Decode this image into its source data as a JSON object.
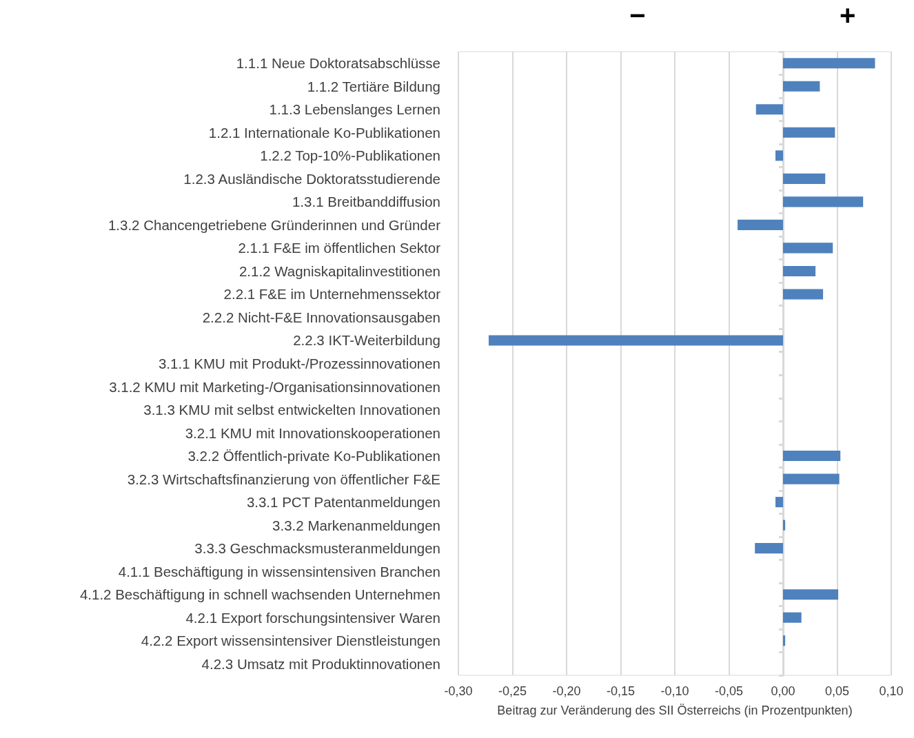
{
  "chart_data": {
    "type": "bar",
    "orientation": "horizontal",
    "xlabel": "Beitrag zur Veränderung des SII Österreichs (in Prozentpunkten)",
    "categories": [
      "1.1.1 Neue Doktoratsabschlüsse",
      "1.1.2 Tertiäre Bildung",
      "1.1.3 Lebenslanges Lernen",
      "1.2.1 Internationale Ko-Publikationen",
      "1.2.2 Top-10%-Publikationen",
      "1.2.3 Ausländische Doktoratsstudierende",
      "1.3.1 Breitbanddiffusion",
      "1.3.2 Chancengetriebene Gründerinnen und Gründer",
      "2.1.1 F&E im öffentlichen Sektor",
      "2.1.2 Wagniskapitalinvestitionen",
      "2.2.1 F&E im Unternehmenssektor",
      "2.2.2 Nicht-F&E Innovationsausgaben",
      "2.2.3 IKT-Weiterbildung",
      "3.1.1 KMU mit Produkt-/Prozessinnovationen",
      "3.1.2 KMU mit Marketing-/Organisationsinnovationen",
      "3.1.3 KMU mit selbst entwickelten Innovationen",
      "3.2.1 KMU mit Innovationskooperationen",
      "3.2.2 Öffentlich-private Ko-Publikationen",
      "3.2.3 Wirtschaftsfinanzierung von öffentlicher F&E",
      "3.3.1 PCT Patentanmeldungen",
      "3.3.2 Markenanmeldungen",
      "3.3.3 Geschmacksmusteranmeldungen",
      "4.1.1 Beschäftigung in wissensintensiven Branchen",
      "4.1.2 Beschäftigung in schnell wachsenden Unternehmen",
      "4.2.1 Export forschungsintensiver Waren",
      "4.2.2 Export wissensintensiver Dienstleistungen",
      "4.2.3 Umsatz mit Produktinnovationen"
    ],
    "values": [
      0.085,
      0.034,
      -0.025,
      0.048,
      -0.007,
      0.039,
      0.074,
      -0.042,
      0.046,
      0.03,
      0.037,
      0,
      -0.272,
      0,
      0,
      0,
      0,
      0.053,
      0.052,
      -0.007,
      0.002,
      -0.026,
      0,
      0.051,
      0.017,
      0.002,
      0
    ],
    "color": "#4f81bd",
    "xlim": [
      -0.3,
      0.1
    ],
    "xticks": [
      {
        "value": -0.3,
        "label": "-0,30"
      },
      {
        "value": -0.25,
        "label": "-0,25"
      },
      {
        "value": -0.2,
        "label": "-0,20"
      },
      {
        "value": -0.15,
        "label": "-0,15"
      },
      {
        "value": -0.1,
        "label": "-0,10"
      },
      {
        "value": -0.05,
        "label": "-0,05"
      },
      {
        "value": 0,
        "label": "0,00"
      },
      {
        "value": 0.05,
        "label": "0,05"
      },
      {
        "value": 0.1,
        "label": "0,10"
      }
    ],
    "grid": "x",
    "annotations": [
      "−",
      "+"
    ]
  }
}
